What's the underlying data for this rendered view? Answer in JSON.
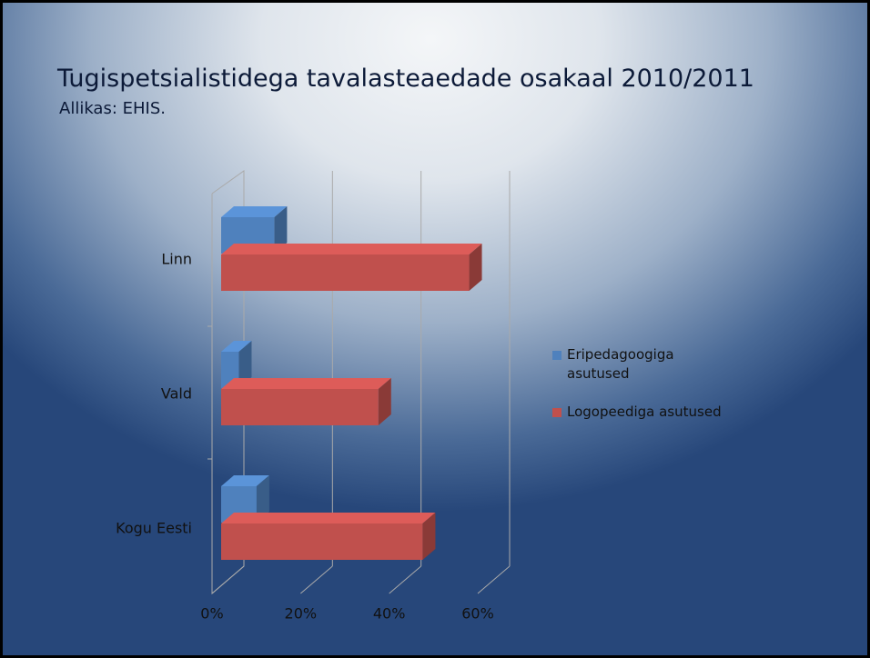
{
  "chart_data": {
    "type": "bar3d_horizontal",
    "title": "Tugispetsialistidega tavalasteaedade osakaal 2010/2011",
    "subtitle": "Allikas: EHIS.",
    "categories": [
      "Linn",
      "Vald",
      "Kogu Eesti"
    ],
    "series": [
      {
        "name": "Eripedagoogiga asutused",
        "color": "#4f81bd",
        "values": [
          12,
          4,
          8
        ]
      },
      {
        "name": "Logopeediga asutused",
        "color": "#c0504d",
        "values": [
          56,
          35.5,
          45.5
        ]
      }
    ],
    "xlim": [
      0,
      60
    ],
    "xticks": [
      {
        "value": 0,
        "label": "0%"
      },
      {
        "value": 20,
        "label": "20%"
      },
      {
        "value": 40,
        "label": "40%"
      },
      {
        "value": 60,
        "label": "60%"
      }
    ],
    "grid": true,
    "legend": "right"
  }
}
